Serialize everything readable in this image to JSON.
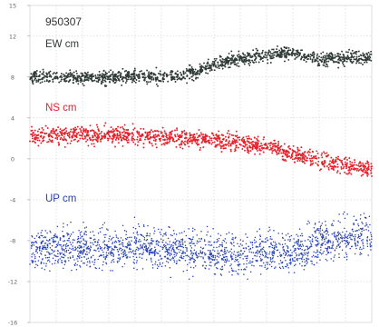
{
  "chart_data": {
    "type": "scatter",
    "title": "950307",
    "xlabel": "",
    "ylabel": "",
    "ylim": [
      -16,
      15
    ],
    "xlim": [
      0,
      1
    ],
    "y_ticks": [
      15,
      12,
      8,
      4,
      0,
      -4,
      -8,
      -12,
      -16
    ],
    "grid": true,
    "series": [
      {
        "name": "EW cm",
        "color": "#2f3a36",
        "points": [
          [
            0.0,
            8.0
          ],
          [
            0.1,
            8.0
          ],
          [
            0.2,
            7.9
          ],
          [
            0.3,
            8.1
          ],
          [
            0.4,
            8.0
          ],
          [
            0.47,
            8.3
          ],
          [
            0.5,
            8.7
          ],
          [
            0.55,
            9.3
          ],
          [
            0.6,
            9.7
          ],
          [
            0.7,
            10.2
          ],
          [
            0.75,
            10.4
          ],
          [
            0.8,
            10.1
          ],
          [
            0.85,
            9.7
          ],
          [
            0.9,
            9.8
          ],
          [
            0.95,
            10.0
          ],
          [
            1.0,
            9.8
          ]
        ]
      },
      {
        "name": "NS cm",
        "color": "#e8202a",
        "points": [
          [
            0.0,
            2.2
          ],
          [
            0.1,
            2.3
          ],
          [
            0.2,
            2.4
          ],
          [
            0.3,
            2.3
          ],
          [
            0.4,
            2.1
          ],
          [
            0.5,
            1.9
          ],
          [
            0.6,
            1.6
          ],
          [
            0.7,
            1.3
          ],
          [
            0.75,
            0.6
          ],
          [
            0.8,
            0.2
          ],
          [
            0.85,
            -0.1
          ],
          [
            0.9,
            -0.5
          ],
          [
            0.95,
            -0.8
          ],
          [
            1.0,
            -1.0
          ]
        ]
      },
      {
        "name": "UP cm",
        "color": "#2540b8",
        "points": [
          [
            0.0,
            -9.0
          ],
          [
            0.1,
            -8.7
          ],
          [
            0.2,
            -8.9
          ],
          [
            0.3,
            -8.5
          ],
          [
            0.4,
            -8.8
          ],
          [
            0.5,
            -9.1
          ],
          [
            0.6,
            -9.4
          ],
          [
            0.7,
            -9.0
          ],
          [
            0.75,
            -9.2
          ],
          [
            0.8,
            -8.8
          ],
          [
            0.85,
            -8.2
          ],
          [
            0.9,
            -7.9
          ],
          [
            0.95,
            -7.5
          ],
          [
            1.0,
            -7.5
          ]
        ]
      }
    ]
  }
}
